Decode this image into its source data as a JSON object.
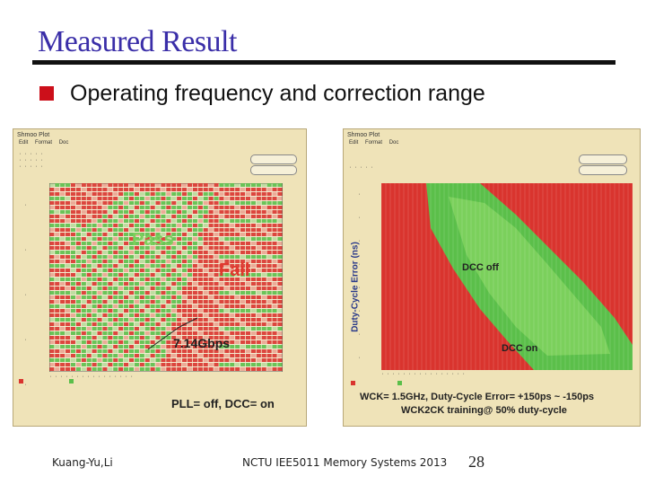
{
  "slide": {
    "title": "Measured Result",
    "bullet": "Operating frequency and correction range",
    "footer_left": "Kuang-Yu,Li",
    "footer_center": "NCTU IEE5011 Memory Systems 2013",
    "page_number": "28"
  },
  "left_plot": {
    "window_title": "Shmoo Plot",
    "menu": [
      "Edit",
      "Format",
      "Doc"
    ],
    "label_pass": "Pass",
    "label_fail": "Fail",
    "label_freq": "7.14Gbps",
    "caption": "PLL= off, DCC= on",
    "colors": {
      "pass": "#5bbf4a",
      "fail": "#d9342e",
      "pass_text": "#7bd05c",
      "fail_text": "#e0392f"
    }
  },
  "right_plot": {
    "window_title": "Shmoo Plot",
    "menu": [
      "Edit",
      "Format",
      "Doc"
    ],
    "y_axis_label": "Duty-Cycle Error (ns)",
    "label_dcc_off": "DCC off",
    "label_dcc_on": "DCC on",
    "caption_line1": "WCK= 1.5GHz, Duty-Cycle Error= +150ps ~ -150ps",
    "caption_line2": "WCK2CK training@ 50% duty-cycle",
    "colors": {
      "pass": "#5bbf4a",
      "fail": "#d9342e"
    }
  }
}
